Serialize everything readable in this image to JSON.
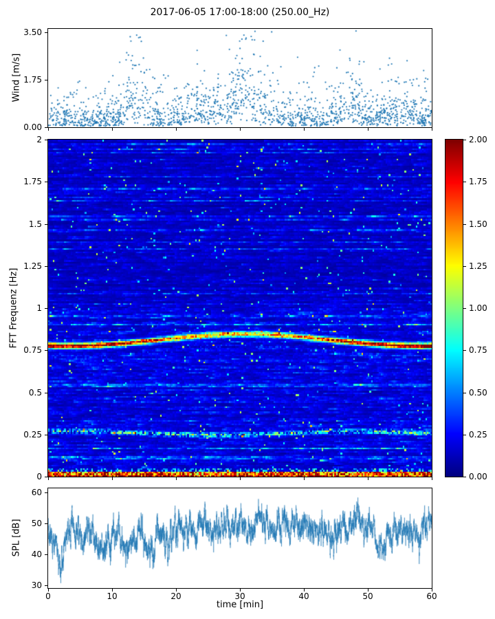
{
  "figure": {
    "title": "2017-06-05 17:00-18:00 (250.00_Hz)",
    "background": "#ffffff"
  },
  "axis_x": {
    "label": "time [min]",
    "ticks": [
      "0",
      "10",
      "20",
      "30",
      "40",
      "50",
      "60"
    ],
    "tick_values": [
      0,
      10,
      20,
      30,
      40,
      50,
      60
    ],
    "range": [
      0,
      60
    ]
  },
  "colorbar": {
    "ticks": [
      "0.00",
      "0.25",
      "0.50",
      "0.75",
      "1.00",
      "1.25",
      "1.50",
      "1.75",
      "2.00"
    ],
    "tick_values": [
      0,
      0.25,
      0.5,
      0.75,
      1,
      1.25,
      1.5,
      1.75,
      2
    ],
    "range": [
      0,
      2
    ],
    "colormap": "jet"
  },
  "chart_data": [
    {
      "type": "scatter",
      "panel": "wind",
      "ylabel": "Wind [m/s]",
      "yticks": [
        "0.00",
        "1.75",
        "3.50"
      ],
      "ytick_values": [
        0,
        1.75,
        3.5
      ],
      "ylim": [
        0,
        3.62
      ],
      "xlim": [
        0,
        60
      ],
      "marker_color": "#1f77b4",
      "marker_size": 1,
      "description": "Dense scatter of wind speed samples, mostly 0-1.5 m/s across the hour, with gust clusters near 13, 30 and 47 min reaching up to 3.5 m/s",
      "gust_centers_min": [
        13.8,
        30.8,
        47.5
      ],
      "gust_peaks_ms": [
        3.3,
        3.5,
        2.8
      ]
    },
    {
      "type": "heatmap",
      "panel": "spectrogram",
      "ylabel": "FFT Frequenz [Hz]",
      "yticks": [
        "0",
        "0.25",
        "0.5",
        "0.75",
        "1",
        "1.25",
        "1.5",
        "1.75",
        "2"
      ],
      "ytick_values": [
        0,
        0.25,
        0.5,
        0.75,
        1,
        1.25,
        1.5,
        1.75,
        2
      ],
      "ylim": [
        0,
        2
      ],
      "xlim": [
        0,
        60
      ],
      "vmin": 0,
      "vmax": 2,
      "colormap": "jet",
      "background_level": "0.1-0.4 (dark blue) broadband noise with horizontal cyan/green streaks, slightly darker above 1 Hz",
      "features": [
        {
          "name": "main-tone",
          "freq_hz": "~0.81, slowly oscillating 0.78-0.85 over the hour",
          "level": "1.5-2.0 (orange/red) continuous band"
        },
        {
          "name": "sub-band",
          "freq_hz": "~0.25",
          "level": "0.5-1.2 (cyan/green), intermittent"
        },
        {
          "name": "dc-band",
          "freq_hz": "<0.03",
          "level": "1.5-2.0 (red) along the bottom edge"
        }
      ]
    },
    {
      "type": "line",
      "panel": "spl",
      "ylabel": "SPL [dB]",
      "yticks": [
        "30",
        "40",
        "50",
        "60"
      ],
      "ytick_values": [
        30,
        40,
        50,
        60
      ],
      "ylim": [
        29,
        61.4
      ],
      "xlim": [
        0,
        60
      ],
      "line_color": "#1f77b4",
      "description": "Noisy broadband sound pressure level around 45-52 dB; deep dip to ~33 dB near 2 min, dips to ~41 dB near 8.5, 16 and 52 min; mean level steps up ~2 dB after 19 min"
    }
  ]
}
